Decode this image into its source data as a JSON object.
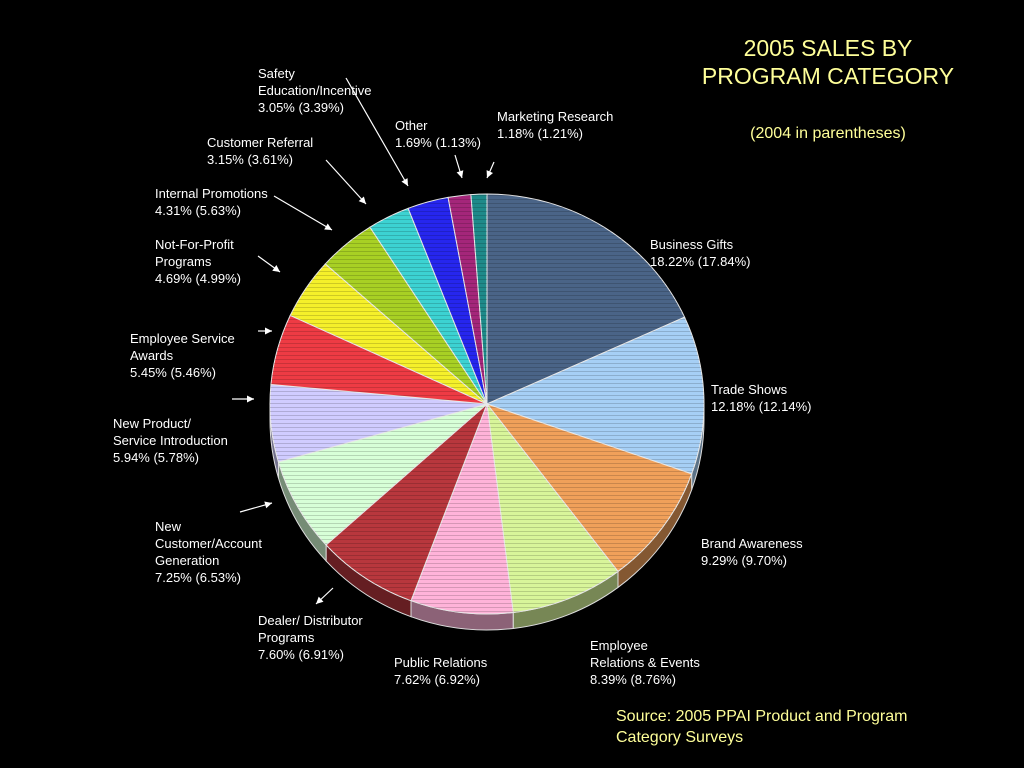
{
  "chart_data": {
    "type": "pie",
    "title": "2005 SALES BY PROGRAM CATEGORY",
    "subtitle": "(2004 in parentheses)",
    "source": "Source: 2005 PPAI Product and Program Category Surveys",
    "slices": [
      {
        "label": "Business Gifts",
        "value": 18.22,
        "value_2004": 17.84,
        "text": "18.22% (17.84%)",
        "color": "#4a6487"
      },
      {
        "label": "Trade Shows",
        "value": 12.18,
        "value_2004": 12.14,
        "text": "12.18% (12.14%)",
        "color": "#a6cff5"
      },
      {
        "label": "Brand Awareness",
        "value": 9.29,
        "value_2004": 9.7,
        "text": "9.29% (9.70%)",
        "color": "#f0a05a"
      },
      {
        "label": "Employee\nRelations & Events",
        "value": 8.39,
        "value_2004": 8.76,
        "text": "8.39% (8.76%)",
        "color": "#d8f59a"
      },
      {
        "label": "Public Relations",
        "value": 7.62,
        "value_2004": 6.92,
        "text": "7.62% (6.92%)",
        "color": "#ffb3d9"
      },
      {
        "label": "Dealer/ Distributor\nPrograms",
        "value": 7.6,
        "value_2004": 6.91,
        "text": "7.60% (6.91%)",
        "color": "#b8373d"
      },
      {
        "label": "New\nCustomer/Account\nGeneration",
        "value": 7.25,
        "value_2004": 6.53,
        "text": "7.25% (6.53%)",
        "color": "#d7ffd7"
      },
      {
        "label": "New Product/\nService Introduction",
        "value": 5.94,
        "value_2004": 5.78,
        "text": "5.94% (5.78%)",
        "color": "#d0ccff"
      },
      {
        "label": "Employee Service\nAwards",
        "value": 5.45,
        "value_2004": 5.46,
        "text": "5.45% (5.46%)",
        "color": "#ee3b44"
      },
      {
        "label": "Not-For-Profit\nPrograms",
        "value": 4.69,
        "value_2004": 4.99,
        "text": "4.69% (4.99%)",
        "color": "#f5f02a"
      },
      {
        "label": "Internal Promotions",
        "value": 4.31,
        "value_2004": 5.63,
        "text": "4.31% (5.63%)",
        "color": "#a8d024"
      },
      {
        "label": "Customer Referral",
        "value": 3.15,
        "value_2004": 3.61,
        "text": "3.15% (3.61%)",
        "color": "#3cd2d2"
      },
      {
        "label": "Safety\nEducation/Incentive",
        "value": 3.05,
        "value_2004": 3.39,
        "text": "3.05% (3.39%)",
        "color": "#2626ee"
      },
      {
        "label": "Other",
        "value": 1.69,
        "value_2004": 1.13,
        "text": "1.69% (1.13%)",
        "color": "#a4267a"
      },
      {
        "label": "Marketing Research",
        "value": 1.18,
        "value_2004": 1.21,
        "text": "1.18% (1.21%)",
        "color": "#1e8a8a"
      }
    ],
    "start": "12 o'clock",
    "direction": "clockwise"
  }
}
